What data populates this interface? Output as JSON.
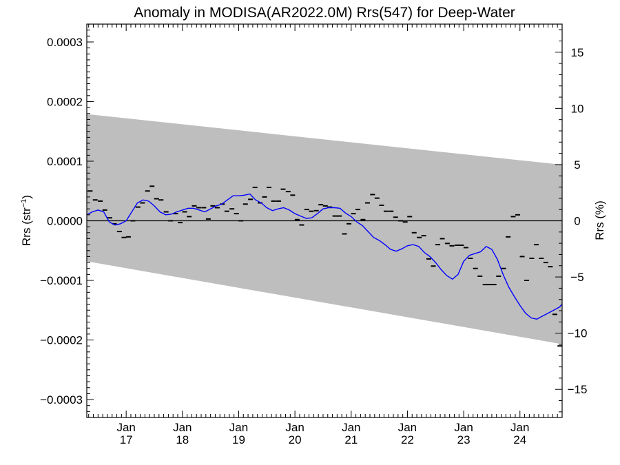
{
  "chart_data": {
    "type": "line",
    "title": "Anomaly in MODISA(AR2022.0M) Rrs(547) for Deep-Water",
    "ylabel_left_main": "Rrs (str",
    "ylabel_left_sup": "−1",
    "ylabel_left_close": ")",
    "ylabel_right": "Rrs (%)",
    "xlim": [
      2016.3,
      2024.75
    ],
    "ylim": [
      -0.00033,
      0.00033
    ],
    "ylim_right": [
      -17.5,
      17.5
    ],
    "x_ticks": [
      {
        "x": 2017.0,
        "line1": "Jan",
        "line2": "17"
      },
      {
        "x": 2018.0,
        "line1": "Jan",
        "line2": "18"
      },
      {
        "x": 2019.0,
        "line1": "Jan",
        "line2": "19"
      },
      {
        "x": 2020.0,
        "line1": "Jan",
        "line2": "20"
      },
      {
        "x": 2021.0,
        "line1": "Jan",
        "line2": "21"
      },
      {
        "x": 2022.0,
        "line1": "Jan",
        "line2": "22"
      },
      {
        "x": 2023.0,
        "line1": "Jan",
        "line2": "23"
      },
      {
        "x": 2024.0,
        "line1": "Jan",
        "line2": "24"
      }
    ],
    "y_ticks_left": [
      {
        "v": 0.0003,
        "label": "0.0003"
      },
      {
        "v": 0.0002,
        "label": "0.0002"
      },
      {
        "v": 0.0001,
        "label": "0.0001"
      },
      {
        "v": 0.0,
        "label": "0.0000"
      },
      {
        "v": -0.0001,
        "label": "−0.0001"
      },
      {
        "v": -0.0002,
        "label": "−0.0002"
      },
      {
        "v": -0.0003,
        "label": "−0.0003"
      }
    ],
    "y_ticks_right": [
      {
        "v": 15,
        "label": "15"
      },
      {
        "v": 10,
        "label": "10"
      },
      {
        "v": 5,
        "label": "5"
      },
      {
        "v": 0,
        "label": "0"
      },
      {
        "v": -5,
        "label": "−5"
      },
      {
        "v": -10,
        "label": "−10"
      },
      {
        "v": -15,
        "label": "−15"
      }
    ],
    "band": {
      "x": [
        2016.3,
        2024.75
      ],
      "upper": [
        0.000179,
        9.4e-05
      ],
      "lower": [
        -6.8e-05,
        -0.000207
      ]
    },
    "monthly_points": {
      "x": [
        2016.36,
        2016.45,
        2016.54,
        2016.62,
        2016.71,
        2016.79,
        2016.88,
        2016.96,
        2017.04,
        2017.12,
        2017.21,
        2017.29,
        2017.38,
        2017.46,
        2017.54,
        2017.62,
        2017.71,
        2017.79,
        2017.88,
        2017.96,
        2018.04,
        2018.12,
        2018.21,
        2018.29,
        2018.38,
        2018.46,
        2018.54,
        2018.62,
        2018.71,
        2018.79,
        2018.88,
        2018.96,
        2019.04,
        2019.12,
        2019.21,
        2019.29,
        2019.38,
        2019.46,
        2019.54,
        2019.62,
        2019.71,
        2019.79,
        2019.88,
        2019.96,
        2020.04,
        2020.12,
        2020.21,
        2020.29,
        2020.38,
        2020.46,
        2020.54,
        2020.62,
        2020.71,
        2020.79,
        2020.88,
        2020.96,
        2021.04,
        2021.12,
        2021.21,
        2021.29,
        2021.38,
        2021.46,
        2021.54,
        2021.62,
        2021.71,
        2021.79,
        2021.88,
        2021.96,
        2022.04,
        2022.12,
        2022.21,
        2022.29,
        2022.38,
        2022.46,
        2022.54,
        2022.62,
        2022.71,
        2022.79,
        2022.88,
        2022.96,
        2023.04,
        2023.12,
        2023.21,
        2023.29,
        2023.38,
        2023.46,
        2023.54,
        2023.62,
        2023.71,
        2023.79,
        2023.88,
        2023.96,
        2024.04,
        2024.12,
        2024.21,
        2024.29,
        2024.38,
        2024.46,
        2024.54,
        2024.62,
        2024.71
      ],
      "y": [
        5e-05,
        3.5e-05,
        3.3e-05,
        1.8e-05,
        5e-06,
        -5e-06,
        -1.8e-05,
        -2.8e-05,
        -2.7e-05,
        0.0,
        2.3e-05,
        3e-05,
        5e-05,
        5.8e-05,
        3.7e-05,
        3.5e-05,
        1.5e-05,
        0.0,
        1.2e-05,
        -3e-06,
        1.5e-05,
        7e-06,
        2.5e-05,
        2.2e-05,
        2.2e-05,
        3e-06,
        2.5e-05,
        2.2e-05,
        2.8e-05,
        1.6e-05,
        2e-05,
        1.2e-05,
        0.0,
        2.8e-05,
        3.6e-05,
        5.6e-05,
        3e-05,
        4e-05,
        5.6e-05,
        3.3e-05,
        3.3e-05,
        5.3e-05,
        4.9e-05,
        4.3e-05,
        2e-06,
        -7e-06,
        1.9e-05,
        1.6e-05,
        1.7e-05,
        2.7e-05,
        2.5e-05,
        2.3e-05,
        8e-06,
        8e-06,
        -2.2e-05,
        -5e-06,
        1.2e-05,
        1.9e-05,
        2e-06,
        3e-05,
        4.4e-05,
        3.8e-05,
        2.6e-05,
        1.6e-05,
        1.6e-05,
        6e-06,
        0.0,
        -2e-06,
        7e-06,
        -2e-05,
        -2.8e-05,
        -2.5e-05,
        -6.4e-05,
        -7.6e-05,
        -4e-05,
        -3e-05,
        -3.8e-05,
        -4.2e-05,
        -4.1e-05,
        -4.1e-05,
        -4.5e-05,
        -6.3e-05,
        -8e-05,
        -9.3e-05,
        -0.000107,
        -0.000107,
        -0.000107,
        -9.3e-05,
        -8e-05,
        -2.7e-05,
        7e-06,
        1e-05,
        -6e-05,
        -0.0001,
        -6.3e-05,
        -4e-05,
        -6.3e-05,
        -7e-05,
        -7.7e-05,
        -0.000157,
        -0.00021
      ]
    },
    "smooth_line": {
      "x": [
        2016.3,
        2016.4,
        2016.5,
        2016.6,
        2016.7,
        2016.8,
        2016.9,
        2017.0,
        2017.1,
        2017.2,
        2017.3,
        2017.4,
        2017.5,
        2017.6,
        2017.7,
        2017.8,
        2017.9,
        2018.0,
        2018.1,
        2018.2,
        2018.3,
        2018.4,
        2018.5,
        2018.6,
        2018.7,
        2018.8,
        2018.9,
        2019.0,
        2019.1,
        2019.2,
        2019.3,
        2019.4,
        2019.5,
        2019.6,
        2019.7,
        2019.8,
        2019.9,
        2020.0,
        2020.1,
        2020.2,
        2020.3,
        2020.4,
        2020.5,
        2020.6,
        2020.7,
        2020.8,
        2020.9,
        2021.0,
        2021.1,
        2021.2,
        2021.3,
        2021.4,
        2021.5,
        2021.6,
        2021.7,
        2021.8,
        2021.9,
        2022.0,
        2022.1,
        2022.2,
        2022.3,
        2022.4,
        2022.5,
        2022.6,
        2022.7,
        2022.8,
        2022.9,
        2023.0,
        2023.1,
        2023.2,
        2023.3,
        2023.4,
        2023.5,
        2023.6,
        2023.7,
        2023.8,
        2023.9,
        2024.0,
        2024.1,
        2024.2,
        2024.3,
        2024.4,
        2024.5,
        2024.6,
        2024.7,
        2024.75
      ],
      "y": [
        1e-05,
        1.5e-05,
        1.8e-05,
        1.5e-05,
        -2e-06,
        -7e-06,
        -5e-06,
        0.0,
        1.5e-05,
        3e-05,
        3.5e-05,
        3.3e-05,
        2.5e-05,
        1.5e-05,
        1e-05,
        1.1e-05,
        1.5e-05,
        1.8e-05,
        2.1e-05,
        2.1e-05,
        1.8e-05,
        1.5e-05,
        2e-05,
        2.5e-05,
        2.8e-05,
        3.5e-05,
        4.2e-05,
        4.2e-05,
        4.3e-05,
        4.5e-05,
        3.5e-05,
        3e-05,
        2.2e-05,
        1.7e-05,
        2e-05,
        2.2e-05,
        1.8e-05,
        1.2e-05,
        8e-06,
        4e-06,
        5e-06,
        1.2e-05,
        2e-05,
        2.2e-05,
        2.2e-05,
        2.1e-05,
        1.3e-05,
        7e-06,
        -2e-06,
        -8e-06,
        -1.8e-05,
        -2.8e-05,
        -3.3e-05,
        -4e-05,
        -4.8e-05,
        -5.1e-05,
        -4.7e-05,
        -4.2e-05,
        -4e-05,
        -4.3e-05,
        -5.3e-05,
        -6e-05,
        -7e-05,
        -8.2e-05,
        -9.2e-05,
        -9.8e-05,
        -9e-05,
        -6.8e-05,
        -5.8e-05,
        -5.5e-05,
        -5.2e-05,
        -4.3e-05,
        -4.8e-05,
        -6.5e-05,
        -9e-05,
        -0.000111,
        -0.000127,
        -0.000142,
        -0.000155,
        -0.000163,
        -0.000165,
        -0.00016,
        -0.000155,
        -0.00015,
        -0.000145,
        -0.00014
      ]
    },
    "colors": {
      "band": "#bebebe",
      "line": "#0000ff",
      "points": "#000000",
      "axis": "#000000"
    },
    "grid": false,
    "legend": "none"
  }
}
